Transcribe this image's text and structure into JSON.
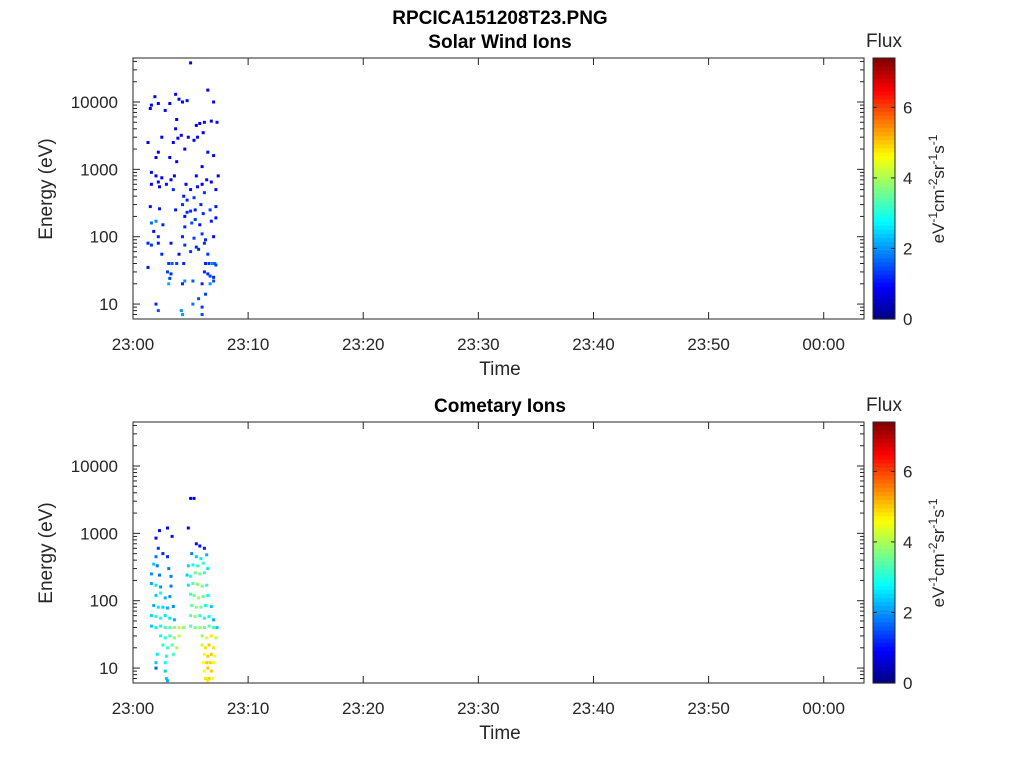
{
  "figure_title": "RPCICA151208T23.PNG",
  "chart_data": [
    {
      "type": "heatmap",
      "title": "Solar Wind Ions",
      "xlabel": "Time",
      "ylabel": "Energy (eV)",
      "y_scale": "log",
      "x_ticks": [
        "23:00",
        "23:10",
        "23:20",
        "23:30",
        "23:40",
        "23:50",
        "00:00"
      ],
      "x_range_minutes": [
        0,
        63.5
      ],
      "y_ticks": [
        "10",
        "100",
        "1000",
        "10000"
      ],
      "y_tick_values": [
        10,
        100,
        1000,
        10000
      ],
      "y_range": [
        6,
        45000
      ],
      "colorbar": {
        "label": "Flux",
        "unit": "eV-1cm-2sr-1s-1",
        "ticks": [
          "0",
          "2",
          "4",
          "6"
        ],
        "tick_values": [
          0,
          2,
          4,
          6
        ],
        "range": [
          0,
          7.4
        ],
        "colormap": "jet"
      },
      "points": [
        [
          1.3,
          2500,
          0.8
        ],
        [
          1.5,
          8000,
          0.9
        ],
        [
          1.6,
          9000,
          0.9
        ],
        [
          1.9,
          12000,
          0.9
        ],
        [
          2.2,
          9500,
          0.8
        ],
        [
          2.8,
          7500,
          0.9
        ],
        [
          3.2,
          9500,
          0.9
        ],
        [
          3.7,
          13000,
          0.9
        ],
        [
          4.0,
          11000,
          0.8
        ],
        [
          4.3,
          10000,
          0.9
        ],
        [
          4.7,
          10500,
          1.0
        ],
        [
          5.0,
          38000,
          0.9
        ],
        [
          6.5,
          15000,
          0.9
        ],
        [
          7.0,
          10000,
          0.9
        ],
        [
          7.3,
          5000,
          1.0
        ],
        [
          6.8,
          5200,
          0.9
        ],
        [
          6.2,
          5000,
          1.0
        ],
        [
          5.8,
          4800,
          0.9
        ],
        [
          5.5,
          4500,
          0.9
        ],
        [
          3.8,
          5500,
          0.9
        ],
        [
          3.7,
          4000,
          0.9
        ],
        [
          2.5,
          3000,
          0.9
        ],
        [
          3.5,
          2500,
          0.9
        ],
        [
          3.9,
          2900,
          0.8
        ],
        [
          4.2,
          3200,
          0.9
        ],
        [
          4.5,
          2000,
          0.9
        ],
        [
          4.8,
          3000,
          0.9
        ],
        [
          5.3,
          2700,
          0.9
        ],
        [
          5.6,
          3000,
          1.0
        ],
        [
          6.1,
          3500,
          0.9
        ],
        [
          6.5,
          1800,
          1.0
        ],
        [
          7.0,
          1600,
          0.9
        ],
        [
          2.2,
          1800,
          0.9
        ],
        [
          2.0,
          1500,
          0.8
        ],
        [
          3.2,
          1500,
          0.9
        ],
        [
          3.8,
          1300,
          0.9
        ],
        [
          6.0,
          1100,
          0.9
        ],
        [
          1.6,
          900,
          1.0
        ],
        [
          2.0,
          800,
          0.9
        ],
        [
          2.2,
          650,
          0.9
        ],
        [
          2.5,
          750,
          0.8
        ],
        [
          2.9,
          600,
          1.0
        ],
        [
          3.3,
          700,
          0.9
        ],
        [
          3.5,
          500,
          1.2
        ],
        [
          3.6,
          800,
          0.9
        ],
        [
          4.6,
          600,
          0.9
        ],
        [
          5.0,
          500,
          1.0
        ],
        [
          5.5,
          800,
          0.9
        ],
        [
          5.6,
          550,
          1.0
        ],
        [
          6.0,
          600,
          0.9
        ],
        [
          6.4,
          700,
          1.0
        ],
        [
          6.8,
          650,
          0.9
        ],
        [
          7.4,
          800,
          0.8
        ],
        [
          7.2,
          500,
          1.0
        ],
        [
          1.6,
          600,
          0.9
        ],
        [
          2.3,
          550,
          0.9
        ],
        [
          4.4,
          400,
          1.1
        ],
        [
          4.7,
          350,
          1.2
        ],
        [
          5.3,
          380,
          1.3
        ],
        [
          5.9,
          300,
          1.2
        ],
        [
          6.2,
          450,
          1.3
        ],
        [
          6.7,
          250,
          1.4
        ],
        [
          7.2,
          280,
          1.1
        ],
        [
          4.3,
          300,
          1.3
        ],
        [
          4.7,
          230,
          1.2
        ],
        [
          5.0,
          240,
          1.2
        ],
        [
          5.4,
          250,
          1.1
        ],
        [
          6.1,
          220,
          1.2
        ],
        [
          3.7,
          250,
          1.1
        ],
        [
          2.3,
          260,
          1.1
        ],
        [
          1.5,
          280,
          1.0
        ],
        [
          4.5,
          200,
          1.0
        ],
        [
          5.1,
          160,
          1.5
        ],
        [
          5.4,
          180,
          1.3
        ],
        [
          5.8,
          150,
          1.0
        ],
        [
          6.8,
          170,
          1.1
        ],
        [
          7.2,
          190,
          1.0
        ],
        [
          2.0,
          170,
          1.9
        ],
        [
          1.6,
          160,
          1.7
        ],
        [
          2.6,
          150,
          1.2
        ],
        [
          4.5,
          140,
          1.2
        ],
        [
          1.8,
          120,
          1.0
        ],
        [
          2.2,
          100,
          1.2
        ],
        [
          4.3,
          100,
          1.2
        ],
        [
          5.3,
          95,
          1.4
        ],
        [
          6.0,
          110,
          1.3
        ],
        [
          6.3,
          90,
          1.2
        ],
        [
          7.0,
          100,
          1.0
        ],
        [
          1.3,
          80,
          1.2
        ],
        [
          1.6,
          75,
          1.3
        ],
        [
          2.2,
          80,
          1.1
        ],
        [
          3.3,
          80,
          1.1
        ],
        [
          4.5,
          75,
          1.3
        ],
        [
          5.5,
          70,
          1.2
        ],
        [
          6.2,
          80,
          1.2
        ],
        [
          2.5,
          55,
          1.2
        ],
        [
          4.0,
          55,
          1.0
        ],
        [
          5.0,
          60,
          1.3
        ],
        [
          5.7,
          65,
          1.2
        ],
        [
          6.5,
          55,
          1.3
        ],
        [
          1.3,
          35,
          1.1
        ],
        [
          3.1,
          40,
          1.3
        ],
        [
          3.4,
          40,
          1.6
        ],
        [
          3.8,
          40,
          1.4
        ],
        [
          4.4,
          40,
          1.2
        ],
        [
          6.3,
          40,
          1.2
        ],
        [
          6.6,
          40,
          1.3
        ],
        [
          6.9,
          40,
          1.9
        ],
        [
          7.1,
          40,
          1.7
        ],
        [
          7.2,
          38,
          1.4
        ],
        [
          3.0,
          30,
          1.4
        ],
        [
          3.3,
          28,
          1.2
        ],
        [
          6.2,
          30,
          1.2
        ],
        [
          6.5,
          28,
          1.2
        ],
        [
          6.7,
          26,
          1.4
        ],
        [
          7.0,
          25,
          1.2
        ],
        [
          3.2,
          24,
          1.4
        ],
        [
          3.1,
          20,
          2.2
        ],
        [
          4.3,
          20,
          1.2
        ],
        [
          4.5,
          22,
          2.0
        ],
        [
          5.2,
          22,
          1.6
        ],
        [
          6.0,
          20,
          1.2
        ],
        [
          6.7,
          20,
          2.0
        ],
        [
          7.0,
          22,
          1.5
        ],
        [
          2.0,
          10,
          1.2
        ],
        [
          2.2,
          8,
          1.5
        ],
        [
          4.2,
          8,
          2.0
        ],
        [
          4.3,
          7,
          2.1
        ],
        [
          5.2,
          10,
          1.8
        ],
        [
          5.7,
          12,
          1.5
        ],
        [
          6.0,
          9,
          1.3
        ],
        [
          6.0,
          7,
          1.5
        ],
        [
          6.3,
          14,
          1.4
        ]
      ]
    },
    {
      "type": "heatmap",
      "title": "Cometary Ions",
      "xlabel": "Time",
      "ylabel": "Energy (eV)",
      "y_scale": "log",
      "x_ticks": [
        "23:00",
        "23:10",
        "23:20",
        "23:30",
        "23:40",
        "23:50",
        "00:00"
      ],
      "x_range_minutes": [
        0,
        63.5
      ],
      "y_ticks": [
        "10",
        "100",
        "1000",
        "10000"
      ],
      "y_tick_values": [
        10,
        100,
        1000,
        10000
      ],
      "y_range": [
        6,
        45000
      ],
      "colorbar": {
        "label": "Flux",
        "unit": "eV-1cm-2sr-1s-1",
        "ticks": [
          "0",
          "2",
          "4",
          "6"
        ],
        "tick_values": [
          0,
          2,
          4,
          6
        ],
        "range": [
          0,
          7.4
        ],
        "colormap": "jet"
      },
      "points": [
        [
          5.0,
          3300,
          0.8
        ],
        [
          5.3,
          3300,
          0.8
        ],
        [
          2.3,
          1100,
          1.0
        ],
        [
          3.0,
          1200,
          0.9
        ],
        [
          4.8,
          1200,
          0.9
        ],
        [
          2.0,
          850,
          0.9
        ],
        [
          3.4,
          900,
          1.0
        ],
        [
          5.5,
          700,
          1.0
        ],
        [
          5.8,
          650,
          1.0
        ],
        [
          6.2,
          600,
          1.1
        ],
        [
          2.2,
          600,
          1.3
        ],
        [
          2.0,
          450,
          1.8
        ],
        [
          2.6,
          500,
          1.2
        ],
        [
          3.0,
          450,
          1.2
        ],
        [
          5.1,
          500,
          1.9
        ],
        [
          5.5,
          450,
          2.4
        ],
        [
          5.9,
          420,
          2.7
        ],
        [
          6.4,
          480,
          2.2
        ],
        [
          1.8,
          350,
          2.4
        ],
        [
          2.1,
          330,
          1.8
        ],
        [
          3.1,
          300,
          1.8
        ],
        [
          4.8,
          330,
          2.5
        ],
        [
          5.2,
          340,
          2.8
        ],
        [
          5.6,
          330,
          3.2
        ],
        [
          6.1,
          360,
          3.0
        ],
        [
          6.5,
          300,
          2.6
        ],
        [
          1.6,
          250,
          2.0
        ],
        [
          2.3,
          240,
          1.8
        ],
        [
          3.3,
          230,
          1.8
        ],
        [
          4.7,
          240,
          2.4
        ],
        [
          5.0,
          230,
          3.0
        ],
        [
          5.4,
          260,
          3.5
        ],
        [
          5.8,
          250,
          3.6
        ],
        [
          6.2,
          260,
          3.2
        ],
        [
          1.6,
          180,
          2.2
        ],
        [
          2.0,
          170,
          2.6
        ],
        [
          2.4,
          160,
          2.0
        ],
        [
          3.3,
          165,
          1.8
        ],
        [
          4.8,
          170,
          2.6
        ],
        [
          5.2,
          180,
          3.4
        ],
        [
          5.6,
          175,
          3.8
        ],
        [
          6.0,
          165,
          3.7
        ],
        [
          6.4,
          170,
          3.0
        ],
        [
          2.0,
          120,
          2.4
        ],
        [
          2.4,
          130,
          2.8
        ],
        [
          2.8,
          110,
          2.2
        ],
        [
          3.2,
          115,
          2.0
        ],
        [
          5.0,
          125,
          3.2
        ],
        [
          5.3,
          120,
          3.6
        ],
        [
          5.7,
          110,
          3.9
        ],
        [
          6.1,
          115,
          3.5
        ],
        [
          6.5,
          120,
          2.8
        ],
        [
          1.8,
          85,
          2.2
        ],
        [
          2.2,
          80,
          2.6
        ],
        [
          2.6,
          80,
          2.5
        ],
        [
          3.0,
          78,
          2.2
        ],
        [
          3.5,
          82,
          2.0
        ],
        [
          5.1,
          85,
          3.5
        ],
        [
          5.5,
          80,
          3.8
        ],
        [
          5.9,
          80,
          3.6
        ],
        [
          6.3,
          85,
          3.0
        ],
        [
          6.8,
          82,
          2.4
        ],
        [
          1.6,
          60,
          2.5
        ],
        [
          2.0,
          58,
          3.0
        ],
        [
          2.4,
          55,
          2.8
        ],
        [
          2.8,
          60,
          2.6
        ],
        [
          3.2,
          55,
          2.6
        ],
        [
          3.6,
          52,
          2.2
        ],
        [
          5.0,
          60,
          3.4
        ],
        [
          5.4,
          58,
          3.8
        ],
        [
          5.8,
          60,
          3.2
        ],
        [
          6.2,
          55,
          2.9
        ],
        [
          6.6,
          58,
          2.8
        ],
        [
          7.0,
          52,
          2.2
        ],
        [
          1.6,
          42,
          2.4
        ],
        [
          2.0,
          40,
          2.8
        ],
        [
          2.4,
          42,
          2.8
        ],
        [
          2.8,
          40,
          3.2
        ],
        [
          3.2,
          40,
          3.5
        ],
        [
          3.6,
          40,
          3.8
        ],
        [
          4.0,
          40,
          4.2
        ],
        [
          4.4,
          40,
          3.8
        ],
        [
          5.0,
          42,
          3.2
        ],
        [
          5.4,
          40,
          3.6
        ],
        [
          5.8,
          40,
          3.8
        ],
        [
          6.2,
          40,
          3.6
        ],
        [
          6.6,
          42,
          3.4
        ],
        [
          7.0,
          40,
          3.2
        ],
        [
          7.3,
          40,
          2.4
        ],
        [
          2.4,
          30,
          2.8
        ],
        [
          2.8,
          28,
          3.0
        ],
        [
          3.2,
          30,
          3.2
        ],
        [
          3.6,
          28,
          3.8
        ],
        [
          4.0,
          30,
          4.2
        ],
        [
          6.0,
          30,
          3.8
        ],
        [
          6.4,
          28,
          4.4
        ],
        [
          6.8,
          30,
          4.8
        ],
        [
          7.2,
          28,
          4.2
        ],
        [
          2.6,
          22,
          3.0
        ],
        [
          3.0,
          20,
          3.2
        ],
        [
          3.4,
          22,
          3.4
        ],
        [
          3.8,
          20,
          4.0
        ],
        [
          6.0,
          22,
          4.2
        ],
        [
          6.3,
          20,
          4.8
        ],
        [
          6.6,
          22,
          5.0
        ],
        [
          7.0,
          20,
          4.8
        ],
        [
          2.1,
          16,
          2.6
        ],
        [
          2.9,
          15,
          2.8
        ],
        [
          3.5,
          16,
          3.2
        ],
        [
          6.2,
          16,
          4.6
        ],
        [
          6.5,
          15,
          5.0
        ],
        [
          6.8,
          16,
          5.0
        ],
        [
          7.1,
          15,
          4.6
        ],
        [
          2.0,
          12,
          2.4
        ],
        [
          2.8,
          12,
          2.8
        ],
        [
          6.1,
          12,
          4.6
        ],
        [
          6.4,
          12,
          5.0
        ],
        [
          6.7,
          12,
          5.0
        ],
        [
          7.0,
          12,
          4.6
        ],
        [
          2.0,
          10,
          1.6
        ],
        [
          2.8,
          9,
          2.4
        ],
        [
          6.2,
          9,
          4.6
        ],
        [
          6.5,
          10,
          5.0
        ],
        [
          6.8,
          9,
          5.0
        ],
        [
          2.9,
          7,
          2.4
        ],
        [
          6.3,
          7,
          4.8
        ],
        [
          6.6,
          7,
          5.0
        ],
        [
          6.9,
          7,
          4.6
        ],
        [
          3.0,
          6.5,
          2.2
        ],
        [
          6.5,
          6.5,
          4.8
        ]
      ]
    }
  ]
}
